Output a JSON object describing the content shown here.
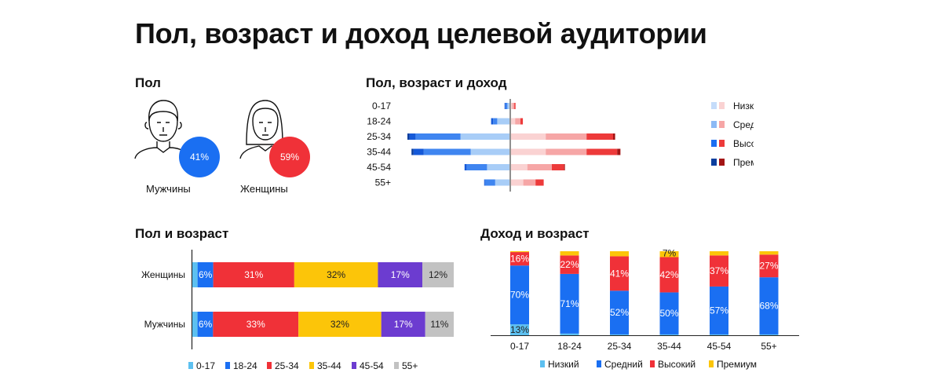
{
  "page": {
    "title": "Пол, возраст и доход целевой аудитории"
  },
  "gender": {
    "title": "Пол",
    "male": {
      "label": "Мужчины",
      "value": "41%",
      "color": "#1a6ff2"
    },
    "female": {
      "label": "Женщины",
      "value": "59%",
      "color": "#f03138"
    }
  },
  "chart_data": [
    {
      "id": "pyramid",
      "type": "bar",
      "orientation": "horizontal-diverging",
      "title": "Пол, возраст и доход",
      "categories": [
        "0-17",
        "18-24",
        "25-34",
        "35-44",
        "45-54",
        "55+"
      ],
      "male_series": [
        {
          "name": "Низкий",
          "color": "#a8cdf7",
          "values": [
            0.5,
            3,
            12,
            9.5,
            5.5,
            3.5
          ]
        },
        {
          "name": "Средний",
          "color": "#3f85f0",
          "values": [
            0.5,
            1,
            11,
            11.5,
            5,
            2.5
          ]
        },
        {
          "name": "Высокий",
          "color": "#1559d8",
          "values": [
            0.2,
            0.5,
            1.5,
            2.5,
            0.5,
            0.2
          ]
        },
        {
          "name": "Премиум",
          "color": "#0b3e9e",
          "values": [
            0,
            0,
            0.5,
            0.5,
            0,
            0
          ]
        }
      ],
      "female_series": [
        {
          "name": "Низкий",
          "color": "#fad2d2",
          "values": [
            0.3,
            1,
            8.5,
            8.5,
            4,
            3
          ]
        },
        {
          "name": "Средний",
          "color": "#f6a6a6",
          "values": [
            0.5,
            1.3,
            10,
            10,
            6,
            3
          ]
        },
        {
          "name": "Высокий",
          "color": "#ed3a3a",
          "values": [
            0.3,
            0.6,
            6.5,
            7.5,
            3,
            2
          ]
        },
        {
          "name": "Премиум",
          "color": "#a31515",
          "values": [
            0,
            0,
            0.5,
            0.8,
            0.2,
            0
          ]
        }
      ],
      "legend": [
        {
          "label": "Низкий",
          "male_color": "#c5dcfa",
          "female_color": "#fad2d2"
        },
        {
          "label": "Средний",
          "male_color": "#8cbaf5",
          "female_color": "#f6a6a6"
        },
        {
          "label": "Высокий",
          "male_color": "#1a6ff2",
          "female_color": "#ed3a3a"
        },
        {
          "label": "Премиум",
          "male_color": "#0b3e9e",
          "female_color": "#a31515"
        }
      ],
      "legend_position": "right"
    },
    {
      "id": "gender_age",
      "type": "bar",
      "orientation": "horizontal-stacked-100",
      "title": "Пол и возраст",
      "categories": [
        "Женщины",
        "Мужчины"
      ],
      "series": [
        {
          "name": "0-17",
          "color": "#5dc0f0",
          "values": [
            2,
            2
          ],
          "labels": [
            "",
            ""
          ]
        },
        {
          "name": "18-24",
          "color": "#1a6ff2",
          "values": [
            6,
            6
          ],
          "labels": [
            "6%",
            "6%"
          ]
        },
        {
          "name": "25-34",
          "color": "#f03138",
          "values": [
            31,
            33
          ],
          "labels": [
            "31%",
            "33%"
          ]
        },
        {
          "name": "35-44",
          "color": "#fcc509",
          "values": [
            32,
            32
          ],
          "labels": [
            "32%",
            "32%"
          ]
        },
        {
          "name": "45-54",
          "color": "#6c3cd0",
          "values": [
            17,
            17
          ],
          "labels": [
            "17%",
            "17%"
          ]
        },
        {
          "name": "55+",
          "color": "#c2c2c2",
          "values": [
            12,
            11
          ],
          "labels": [
            "12%",
            "11%"
          ]
        }
      ],
      "legend_position": "bottom"
    },
    {
      "id": "income_age",
      "type": "bar",
      "orientation": "vertical-stacked-100",
      "title": "Доход и возраст",
      "categories": [
        "0-17",
        "18-24",
        "25-34",
        "35-44",
        "45-54",
        "55+"
      ],
      "series": [
        {
          "name": "Низкий",
          "color": "#5dc0f0",
          "values": [
            13,
            2,
            1,
            1,
            1,
            1
          ],
          "labels": [
            "13%",
            "",
            "",
            "",
            "",
            ""
          ]
        },
        {
          "name": "Средний",
          "color": "#1a6ff2",
          "values": [
            70,
            71,
            52,
            50,
            57,
            68
          ],
          "labels": [
            "70%",
            "71%",
            "52%",
            "50%",
            "57%",
            "68%"
          ]
        },
        {
          "name": "Высокий",
          "color": "#f03138",
          "values": [
            16,
            22,
            41,
            42,
            37,
            27
          ],
          "labels": [
            "16%",
            "22%",
            "41%",
            "42%",
            "37%",
            "27%"
          ]
        },
        {
          "name": "Премиум",
          "color": "#fcc509",
          "values": [
            1,
            5,
            6,
            7,
            5,
            4
          ],
          "labels": [
            "",
            "",
            "",
            "7%",
            "",
            ""
          ]
        }
      ],
      "legend_position": "bottom"
    }
  ]
}
